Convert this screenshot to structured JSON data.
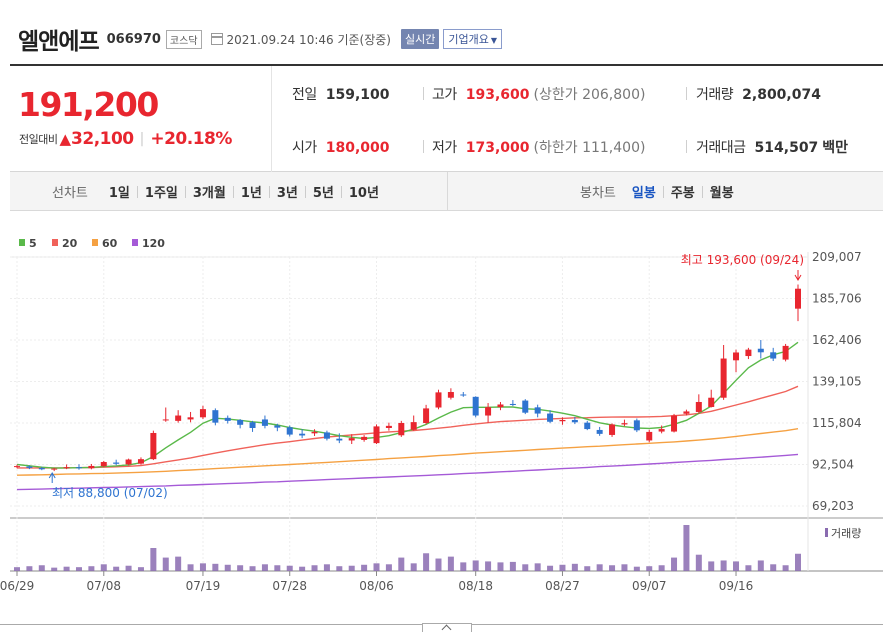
{
  "header": {
    "name": "엘앤에프",
    "code": "066970",
    "market": "코스닥",
    "date": "2021.09.24 10:46 기준(장중)",
    "realtime": "실시간",
    "company_info": "기업개요"
  },
  "summary": {
    "price": "191,200",
    "change_label": "전일대비",
    "change_value": "32,100",
    "change_rate": "+20.18%",
    "prev_close_label": "전일",
    "prev_close": "159,100",
    "high_label": "고가",
    "high": "193,600",
    "upper_limit": "(상한가 206,800)",
    "volume_label": "거래량",
    "volume": "2,800,074",
    "open_label": "시가",
    "open": "180,000",
    "low_label": "저가",
    "low": "173,000",
    "lower_limit": "(하한가 111,400)",
    "amount_label": "거래대금",
    "amount": "514,507",
    "amount_unit": "백만"
  },
  "period_bar": {
    "line_label": "선차트",
    "line_items": [
      "1일",
      "1주일",
      "3개월",
      "1년",
      "3년",
      "5년",
      "10년"
    ],
    "candle_label": "봉차트",
    "candle_items": [
      "일봉",
      "주봉",
      "월봉"
    ],
    "candle_active": 0
  },
  "colors": {
    "up": "#e8262f",
    "down": "#2f74d0",
    "ma5": "#5ab94a",
    "ma20": "#f0625a",
    "ma60": "#f5a142",
    "ma120": "#a55ad7",
    "volume": "#8a6bb0"
  },
  "chart_data": {
    "type": "candlestick",
    "legend": [
      "5",
      "20",
      "60",
      "120"
    ],
    "y_ticks": [
      209007,
      185706,
      162406,
      139105,
      115804,
      92504,
      69203
    ],
    "y_tick_labels": [
      "209,007",
      "185,706",
      "162,406",
      "139,105",
      "115,804",
      "92,504",
      "69,203"
    ],
    "ylim": [
      69203,
      209007
    ],
    "x_ticks": [
      "06/29",
      "07/08",
      "07/19",
      "07/28",
      "08/06",
      "08/18",
      "08/27",
      "09/07",
      "09/16"
    ],
    "x_tick_index": [
      0,
      7,
      15,
      22,
      29,
      37,
      44,
      51,
      58
    ],
    "high_note": "최고 193,600 (09/24)",
    "low_note": "최저 88,800 (07/02)",
    "volume_label": "거래량",
    "candles": [
      {
        "o": 91200,
        "h": 92400,
        "l": 90400,
        "c": 91600
      },
      {
        "o": 91400,
        "h": 92000,
        "l": 89900,
        "c": 90600
      },
      {
        "o": 90500,
        "h": 91200,
        "l": 89300,
        "c": 89800
      },
      {
        "o": 89800,
        "h": 90600,
        "l": 88800,
        "c": 90200
      },
      {
        "o": 90400,
        "h": 92500,
        "l": 89900,
        "c": 91000
      },
      {
        "o": 91000,
        "h": 92600,
        "l": 89600,
        "c": 90400
      },
      {
        "o": 90400,
        "h": 92800,
        "l": 89800,
        "c": 91700
      },
      {
        "o": 91500,
        "h": 94500,
        "l": 91000,
        "c": 93900
      },
      {
        "o": 93600,
        "h": 95200,
        "l": 92100,
        "c": 92900
      },
      {
        "o": 92600,
        "h": 95800,
        "l": 92000,
        "c": 95300
      },
      {
        "o": 93000,
        "h": 96500,
        "l": 92300,
        "c": 95500
      },
      {
        "o": 95500,
        "h": 111500,
        "l": 95000,
        "c": 110200
      },
      {
        "o": 117500,
        "h": 124500,
        "l": 116500,
        "c": 117800
      },
      {
        "o": 117000,
        "h": 123000,
        "l": 116000,
        "c": 120000
      },
      {
        "o": 117800,
        "h": 122000,
        "l": 116200,
        "c": 119000
      },
      {
        "o": 119000,
        "h": 125500,
        "l": 118000,
        "c": 123600
      },
      {
        "o": 123000,
        "h": 124000,
        "l": 114500,
        "c": 116000
      },
      {
        "o": 118700,
        "h": 120000,
        "l": 115500,
        "c": 117000
      },
      {
        "o": 117500,
        "h": 118000,
        "l": 112800,
        "c": 114800
      },
      {
        "o": 116200,
        "h": 117000,
        "l": 110800,
        "c": 113000
      },
      {
        "o": 117800,
        "h": 120000,
        "l": 112800,
        "c": 114200
      },
      {
        "o": 114400,
        "h": 115400,
        "l": 111200,
        "c": 113200
      },
      {
        "o": 113400,
        "h": 114400,
        "l": 108200,
        "c": 109300
      },
      {
        "o": 109800,
        "h": 112400,
        "l": 107300,
        "c": 108800
      },
      {
        "o": 110000,
        "h": 112300,
        "l": 108500,
        "c": 110800
      },
      {
        "o": 110500,
        "h": 111500,
        "l": 106000,
        "c": 107000
      },
      {
        "o": 107000,
        "h": 110000,
        "l": 104500,
        "c": 106000
      },
      {
        "o": 106000,
        "h": 109500,
        "l": 104000,
        "c": 107300
      },
      {
        "o": 106300,
        "h": 109000,
        "l": 105300,
        "c": 108000
      },
      {
        "o": 104500,
        "h": 115000,
        "l": 104000,
        "c": 113900
      },
      {
        "o": 113000,
        "h": 116000,
        "l": 111500,
        "c": 114200
      },
      {
        "o": 108900,
        "h": 117000,
        "l": 108000,
        "c": 115800
      },
      {
        "o": 112000,
        "h": 120000,
        "l": 111500,
        "c": 116300
      },
      {
        "o": 115800,
        "h": 126000,
        "l": 115000,
        "c": 124000
      },
      {
        "o": 124500,
        "h": 134500,
        "l": 123500,
        "c": 133000
      },
      {
        "o": 130000,
        "h": 135300,
        "l": 129000,
        "c": 133200
      },
      {
        "o": 131800,
        "h": 133200,
        "l": 130500,
        "c": 131500
      },
      {
        "o": 130500,
        "h": 130800,
        "l": 119000,
        "c": 120000
      },
      {
        "o": 120000,
        "h": 127000,
        "l": 116000,
        "c": 124700
      },
      {
        "o": 124700,
        "h": 127600,
        "l": 123000,
        "c": 126200
      },
      {
        "o": 126500,
        "h": 128700,
        "l": 125300,
        "c": 125900
      },
      {
        "o": 128400,
        "h": 129200,
        "l": 120800,
        "c": 121600
      },
      {
        "o": 124600,
        "h": 126100,
        "l": 119000,
        "c": 121100
      },
      {
        "o": 121100,
        "h": 123000,
        "l": 115700,
        "c": 116500
      },
      {
        "o": 116800,
        "h": 119000,
        "l": 114800,
        "c": 117500
      },
      {
        "o": 117500,
        "h": 119200,
        "l": 115200,
        "c": 116200
      },
      {
        "o": 116000,
        "h": 117000,
        "l": 111800,
        "c": 112400
      },
      {
        "o": 111900,
        "h": 113600,
        "l": 108600,
        "c": 109700
      },
      {
        "o": 109100,
        "h": 115600,
        "l": 108000,
        "c": 115000
      },
      {
        "o": 115000,
        "h": 117700,
        "l": 114000,
        "c": 115700
      },
      {
        "o": 117300,
        "h": 118300,
        "l": 110700,
        "c": 111700
      },
      {
        "o": 106000,
        "h": 112000,
        "l": 105000,
        "c": 110800
      },
      {
        "o": 111000,
        "h": 114400,
        "l": 110000,
        "c": 112400
      },
      {
        "o": 111000,
        "h": 120900,
        "l": 110500,
        "c": 120000
      },
      {
        "o": 121000,
        "h": 123300,
        "l": 120000,
        "c": 122300
      },
      {
        "o": 122000,
        "h": 131900,
        "l": 121000,
        "c": 127600
      },
      {
        "o": 124800,
        "h": 134500,
        "l": 124500,
        "c": 130000
      },
      {
        "o": 130000,
        "h": 159600,
        "l": 128800,
        "c": 152000
      },
      {
        "o": 151000,
        "h": 157000,
        "l": 144300,
        "c": 155400
      },
      {
        "o": 153400,
        "h": 158000,
        "l": 151700,
        "c": 157000
      },
      {
        "o": 157500,
        "h": 162400,
        "l": 152000,
        "c": 155500
      },
      {
        "o": 155500,
        "h": 158000,
        "l": 150600,
        "c": 152000
      },
      {
        "o": 151400,
        "h": 160200,
        "l": 150400,
        "c": 159100
      },
      {
        "o": 180000,
        "h": 193600,
        "l": 173000,
        "c": 191200
      }
    ],
    "ma5": [
      92500,
      91800,
      91000,
      90500,
      90600,
      90700,
      90900,
      91300,
      91700,
      92300,
      93500,
      97000,
      101900,
      106300,
      110600,
      115700,
      118500,
      118000,
      117300,
      116500,
      115800,
      114700,
      113300,
      112100,
      111200,
      110000,
      108700,
      107800,
      107100,
      107700,
      108700,
      110400,
      112300,
      115000,
      118600,
      121900,
      124400,
      124600,
      124600,
      124800,
      124800,
      123800,
      123500,
      122500,
      121300,
      119900,
      117900,
      115900,
      114700,
      113700,
      113000,
      112800,
      113300,
      115100,
      117300,
      121200,
      125300,
      132500,
      139800,
      146800,
      151200,
      154100,
      156000,
      161100
    ],
    "ma20": [
      90600,
      90600,
      90600,
      90600,
      90600,
      90700,
      90800,
      91000,
      91200,
      91500,
      91900,
      92900,
      94000,
      95100,
      96200,
      97600,
      98900,
      100200,
      101400,
      102500,
      103600,
      104500,
      105300,
      106200,
      107100,
      107900,
      108500,
      109100,
      109700,
      110300,
      110800,
      111200,
      111600,
      112200,
      112900,
      113600,
      114500,
      115300,
      116000,
      116600,
      117000,
      117400,
      117800,
      118100,
      118400,
      118700,
      118800,
      119000,
      119100,
      119200,
      119200,
      119300,
      119500,
      119900,
      120400,
      121200,
      122400,
      124100,
      125900,
      127700,
      129700,
      131600,
      133500,
      136400
    ],
    "ma60": [
      86500,
      86600,
      86700,
      86900,
      87100,
      87200,
      87400,
      87500,
      87700,
      87900,
      88100,
      88400,
      88700,
      89100,
      89400,
      89800,
      90200,
      90600,
      91000,
      91400,
      91800,
      92100,
      92500,
      92900,
      93300,
      93700,
      94100,
      94500,
      94900,
      95300,
      95800,
      96200,
      96600,
      97000,
      97500,
      97900,
      98400,
      98900,
      99300,
      99700,
      100100,
      100500,
      100900,
      101300,
      101700,
      102100,
      102500,
      102800,
      103200,
      103600,
      104000,
      104400,
      104800,
      105200,
      105700,
      106200,
      106800,
      107500,
      108300,
      109100,
      109900,
      110700,
      111500,
      112600
    ],
    "ma120": [
      78400,
      78600,
      78700,
      78900,
      79100,
      79200,
      79400,
      79600,
      79700,
      79900,
      80100,
      80300,
      80500,
      80800,
      81000,
      81300,
      81500,
      81800,
      82000,
      82300,
      82600,
      82800,
      83100,
      83400,
      83700,
      84000,
      84300,
      84600,
      84900,
      85200,
      85500,
      85800,
      86100,
      86400,
      86700,
      87000,
      87400,
      87700,
      88000,
      88400,
      88700,
      89100,
      89400,
      89800,
      90200,
      90500,
      90900,
      91300,
      91600,
      92000,
      92400,
      92800,
      93200,
      93600,
      94000,
      94400,
      94800,
      95300,
      95700,
      96200,
      96600,
      97100,
      97600,
      98200
    ],
    "volume": [
      8,
      10,
      12,
      7,
      9,
      8,
      10,
      14,
      9,
      11,
      8,
      48,
      28,
      30,
      14,
      16,
      15,
      13,
      12,
      10,
      14,
      12,
      11,
      9,
      12,
      14,
      10,
      11,
      13,
      16,
      14,
      28,
      16,
      37,
      26,
      30,
      18,
      22,
      20,
      18,
      19,
      14,
      16,
      11,
      13,
      15,
      10,
      14,
      12,
      14,
      9,
      10,
      12,
      28,
      96,
      34,
      20,
      22,
      20,
      12,
      22,
      14,
      12,
      36
    ]
  }
}
